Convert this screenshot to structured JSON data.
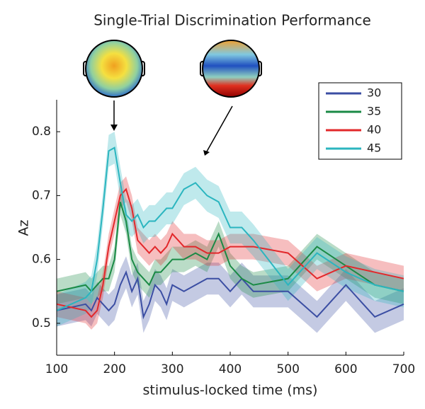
{
  "chart_data": {
    "type": "line",
    "title": "Single-Trial Discrimination Performance",
    "x_label": "stimulus-locked time (ms)",
    "y_label": "Az",
    "x": [
      100,
      150,
      160,
      170,
      180,
      190,
      200,
      210,
      220,
      230,
      240,
      250,
      260,
      270,
      280,
      290,
      300,
      320,
      340,
      360,
      380,
      400,
      420,
      440,
      500,
      550,
      600,
      650,
      700
    ],
    "xlim": [
      100,
      700
    ],
    "xticks": [
      100,
      200,
      300,
      400,
      500,
      600,
      700
    ],
    "ylim": [
      0.45,
      0.85
    ],
    "yticks": [
      0.5,
      0.6,
      0.7,
      0.8
    ],
    "legend": "upper right",
    "series": [
      {
        "name": "30",
        "color": "#3b4ea3",
        "error": 0.025,
        "values": [
          0.52,
          0.53,
          0.52,
          0.54,
          0.53,
          0.52,
          0.53,
          0.56,
          0.58,
          0.55,
          0.57,
          0.51,
          0.53,
          0.56,
          0.55,
          0.53,
          0.56,
          0.55,
          0.56,
          0.57,
          0.57,
          0.55,
          0.57,
          0.55,
          0.55,
          0.51,
          0.56,
          0.51,
          0.53
        ]
      },
      {
        "name": "35",
        "color": "#1a8a45",
        "error": 0.02,
        "values": [
          0.55,
          0.56,
          0.55,
          0.56,
          0.57,
          0.57,
          0.6,
          0.69,
          0.66,
          0.6,
          0.58,
          0.57,
          0.56,
          0.58,
          0.58,
          0.59,
          0.6,
          0.6,
          0.61,
          0.6,
          0.64,
          0.59,
          0.57,
          0.56,
          0.57,
          0.62,
          0.59,
          0.56,
          0.55
        ]
      },
      {
        "name": "40",
        "color": "#e2282b",
        "error": 0.02,
        "values": [
          0.53,
          0.52,
          0.51,
          0.52,
          0.56,
          0.62,
          0.66,
          0.7,
          0.71,
          0.68,
          0.63,
          0.62,
          0.61,
          0.62,
          0.61,
          0.62,
          0.64,
          0.62,
          0.62,
          0.61,
          0.61,
          0.62,
          0.62,
          0.62,
          0.61,
          0.57,
          0.59,
          0.58,
          0.57
        ]
      },
      {
        "name": "45",
        "color": "#2bb5bf",
        "error": 0.025,
        "values": [
          0.52,
          0.54,
          0.55,
          0.6,
          0.68,
          0.77,
          0.775,
          0.72,
          0.67,
          0.66,
          0.67,
          0.65,
          0.66,
          0.66,
          0.67,
          0.68,
          0.68,
          0.71,
          0.72,
          0.7,
          0.69,
          0.65,
          0.65,
          0.63,
          0.56,
          0.61,
          0.58,
          0.56,
          0.55
        ]
      }
    ]
  }
}
